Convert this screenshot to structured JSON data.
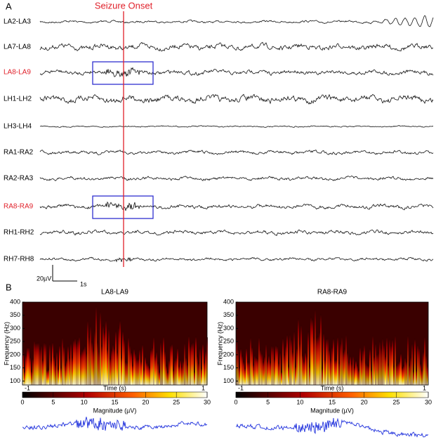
{
  "panel_a": {
    "label": "A",
    "annotation": "Seizure Onset",
    "channels": [
      {
        "label": "LA2-LA3",
        "highlight": false
      },
      {
        "label": "LA7-LA8",
        "highlight": false
      },
      {
        "label": "LA8-LA9",
        "highlight": true
      },
      {
        "label": "LH1-LH2",
        "highlight": false
      },
      {
        "label": "LH3-LH4",
        "highlight": false
      },
      {
        "label": "RA1-RA2",
        "highlight": false
      },
      {
        "label": "RA2-RA3",
        "highlight": false
      },
      {
        "label": "RA8-RA9",
        "highlight": true
      },
      {
        "label": "RH1-RH2",
        "highlight": false
      },
      {
        "label": "RH7-RH8",
        "highlight": false
      }
    ],
    "scale_bar": {
      "amplitude": "20µV",
      "time": "1s"
    }
  },
  "panel_b": {
    "label": "B",
    "plots": [
      {
        "title": "LA8-LA9",
        "y_label": "Frequency (Hz)",
        "ylim": [
          85,
          400
        ],
        "yticks": [
          100,
          150,
          200,
          250,
          300,
          350,
          400
        ],
        "x_start": "-1",
        "x_label": "Time (s)",
        "x_end": "1",
        "colorbar_lim": [
          0,
          30
        ],
        "colorbar_ticks": [
          0,
          5,
          10,
          15,
          20,
          25,
          30
        ],
        "colorbar_label": "Magnitude (µV)"
      },
      {
        "title": "RA8-RA9",
        "y_label": "Frequency (Hz)",
        "ylim": [
          85,
          400
        ],
        "yticks": [
          100,
          150,
          200,
          250,
          300,
          350,
          400
        ],
        "x_start": "-1",
        "x_label": "Time (s)",
        "x_end": "1",
        "colorbar_lim": [
          0,
          30
        ],
        "colorbar_ticks": [
          0,
          5,
          10,
          15,
          20,
          25,
          30
        ],
        "colorbar_label": "Magnitude (µV)"
      }
    ]
  }
}
